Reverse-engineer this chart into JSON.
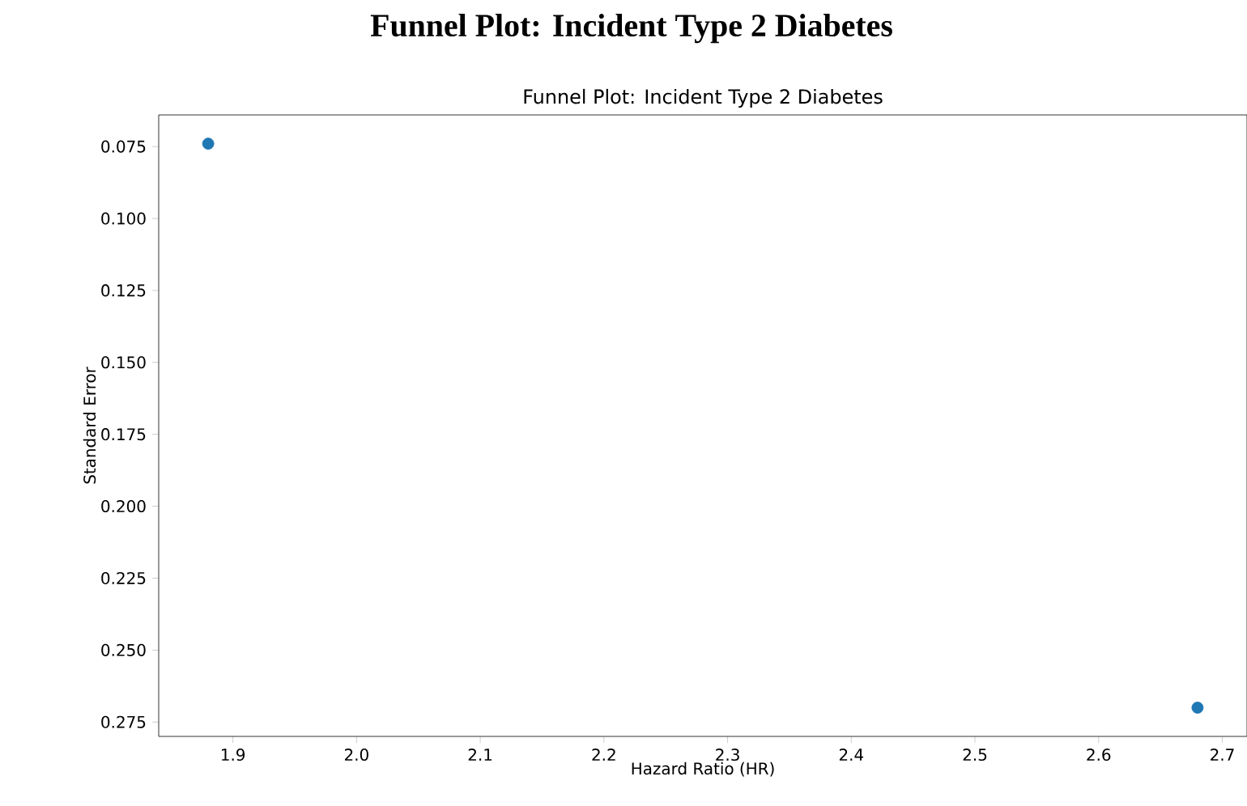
{
  "chart_data": {
    "type": "scatter",
    "title": "Funnel Plot: Incident Type 2 Diabetes",
    "subtitle": "Funnel Plot: Incident Type 2 Diabetes",
    "xlabel": "Hazard Ratio (HR)",
    "ylabel": "Standard Error",
    "x": [
      1.88,
      2.68
    ],
    "values": [
      0.074,
      0.27
    ],
    "color": "#1f77b4",
    "marker": "circle",
    "xlim": [
      1.84,
      2.72
    ],
    "ylim": [
      0.28,
      0.064
    ],
    "xticks": [
      1.9,
      {
        "value": 2.0,
        "label": "2.0"
      },
      2.1,
      2.2,
      2.3,
      2.4,
      2.5,
      2.6,
      2.7
    ],
    "yticks": [
      0.075,
      {
        "value": 0.1,
        "label": "0.100"
      },
      0.125,
      {
        "value": 0.15,
        "label": "0.150"
      },
      0.175,
      {
        "value": 0.2,
        "label": "0.200"
      },
      0.225,
      {
        "value": 0.25,
        "label": "0.250"
      },
      0.275
    ],
    "grid": false
  }
}
